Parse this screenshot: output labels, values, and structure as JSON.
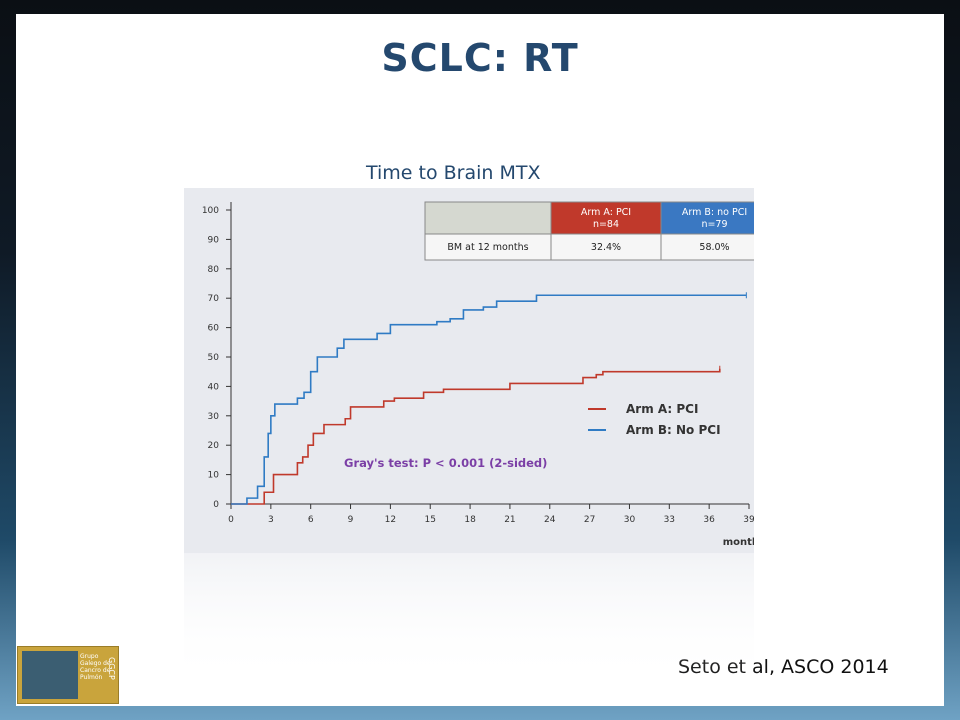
{
  "slide": {
    "title": "SCLC: RT",
    "subtitle": "Time to Brain MTX",
    "citation": "Seto et al, ASCO 2014",
    "logo_text": "Grupo Galego de Cancro de Pulmón",
    "logo_mark": "GGCP"
  },
  "colors": {
    "title": "#24486e",
    "arm_a": "#c0392b",
    "arm_b": "#2f7bc4",
    "chart_bg": "#e8eaef",
    "test_text": "#7b3fa6"
  },
  "chart_data": {
    "type": "line",
    "x_label": "months",
    "x_ticks": [
      0,
      3,
      6,
      9,
      12,
      15,
      18,
      21,
      24,
      27,
      30,
      33,
      36,
      39
    ],
    "y_ticks": [
      0,
      10,
      20,
      30,
      40,
      50,
      60,
      70,
      80,
      90,
      100
    ],
    "xlim": [
      0,
      39
    ],
    "ylim": [
      0,
      100
    ],
    "step": true,
    "series": [
      {
        "name": "Arm A: PCI",
        "color": "#c0392b",
        "points": [
          [
            0,
            0
          ],
          [
            2.5,
            0
          ],
          [
            2.5,
            4
          ],
          [
            3.2,
            10
          ],
          [
            4.8,
            10
          ],
          [
            5,
            14
          ],
          [
            5.4,
            16
          ],
          [
            5.8,
            20
          ],
          [
            6.2,
            24
          ],
          [
            7,
            27
          ],
          [
            8,
            27
          ],
          [
            8.6,
            29
          ],
          [
            9,
            33
          ],
          [
            10,
            33
          ],
          [
            10.5,
            33
          ],
          [
            11.5,
            35
          ],
          [
            12,
            35
          ],
          [
            12.3,
            36
          ],
          [
            14,
            36
          ],
          [
            14.5,
            38
          ],
          [
            15.5,
            38
          ],
          [
            16,
            39
          ],
          [
            20,
            39
          ],
          [
            21,
            41
          ],
          [
            26,
            41
          ],
          [
            26.5,
            43
          ],
          [
            27.5,
            44
          ],
          [
            28,
            45
          ],
          [
            36.8,
            46
          ]
        ]
      },
      {
        "name": "Arm B: No PCI",
        "color": "#2f7bc4",
        "points": [
          [
            0,
            0
          ],
          [
            1,
            0
          ],
          [
            1.2,
            2
          ],
          [
            2,
            6
          ],
          [
            2.5,
            16
          ],
          [
            2.8,
            24
          ],
          [
            3,
            30
          ],
          [
            3.3,
            34
          ],
          [
            4.5,
            34
          ],
          [
            5,
            36
          ],
          [
            5.5,
            38
          ],
          [
            6,
            45
          ],
          [
            6.5,
            50
          ],
          [
            7.5,
            50
          ],
          [
            8,
            53
          ],
          [
            8.5,
            56
          ],
          [
            11,
            58
          ],
          [
            12,
            61
          ],
          [
            15,
            61
          ],
          [
            15.5,
            62
          ],
          [
            16.5,
            63
          ],
          [
            17.5,
            66
          ],
          [
            19,
            67
          ],
          [
            20,
            69
          ],
          [
            22,
            69
          ],
          [
            23,
            71
          ],
          [
            38.8,
            71
          ]
        ]
      }
    ],
    "legend": [
      "Arm A: PCI",
      "Arm B: No PCI"
    ],
    "legend_position": "center-right",
    "annotation": "Gray's test: P < 0.001 (2-sided)",
    "table": {
      "header": [
        "",
        "Arm A: PCI\nn=84",
        "Arm B: no PCI\nn=79"
      ],
      "rows": [
        [
          "BM at 12 months",
          "32.4%",
          "58.0%"
        ]
      ]
    }
  }
}
